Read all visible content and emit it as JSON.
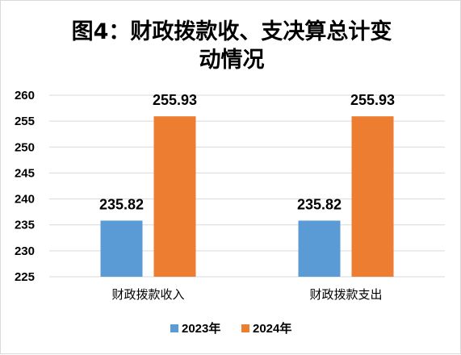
{
  "chart_data": {
    "type": "bar",
    "title_lines": [
      "图4：财政拨款收、支决算总计变",
      "动情况"
    ],
    "categories": [
      "财政拨款收入",
      "财政拨款支出"
    ],
    "series": [
      {
        "name": "2023年",
        "color": "#5b9bd5",
        "values": [
          235.82,
          235.82
        ]
      },
      {
        "name": "2024年",
        "color": "#ed7d31",
        "values": [
          255.93,
          255.93
        ]
      }
    ],
    "data_labels": [
      [
        "235.82",
        "255.93"
      ],
      [
        "235.82",
        "255.93"
      ]
    ],
    "ylim": [
      225,
      260
    ],
    "yticks": [
      "260",
      "255",
      "250",
      "245",
      "240",
      "235",
      "230",
      "225"
    ],
    "grid": true,
    "legend_position": "bottom",
    "gridline_color": "#d9d9d9"
  }
}
